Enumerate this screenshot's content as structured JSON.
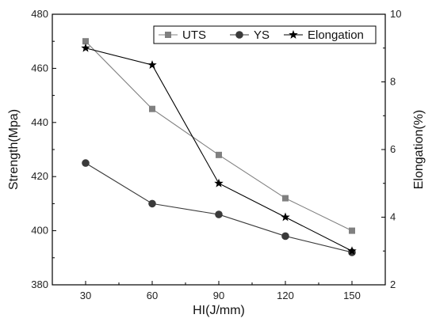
{
  "chart_data": {
    "type": "line",
    "x": [
      30,
      60,
      90,
      120,
      150
    ],
    "xlabel": "HI(J/mm)",
    "ylabel_left": "Strength(Mpa)",
    "ylabel_right": "Elongation(%)",
    "xlim": [
      15,
      165
    ],
    "ylim_left": [
      380,
      480
    ],
    "ylim_right": [
      2,
      10
    ],
    "x_ticks": [
      30,
      60,
      90,
      120,
      150
    ],
    "y_ticks_left": [
      380,
      400,
      420,
      440,
      460,
      480
    ],
    "y_ticks_right": [
      2,
      4,
      6,
      8,
      10
    ],
    "grid": false,
    "legend_position": "top-right",
    "series": [
      {
        "name": "UTS",
        "axis": "left",
        "marker": "square",
        "color": "#808080",
        "values": [
          470,
          445,
          428,
          412,
          400
        ]
      },
      {
        "name": "YS",
        "axis": "left",
        "marker": "circle",
        "color": "#3a3a3a",
        "values": [
          425,
          410,
          406,
          398,
          392
        ]
      },
      {
        "name": "Elongation",
        "axis": "right",
        "marker": "star",
        "color": "#000000",
        "values": [
          9.0,
          8.5,
          5.0,
          4.0,
          3.0
        ]
      }
    ]
  }
}
